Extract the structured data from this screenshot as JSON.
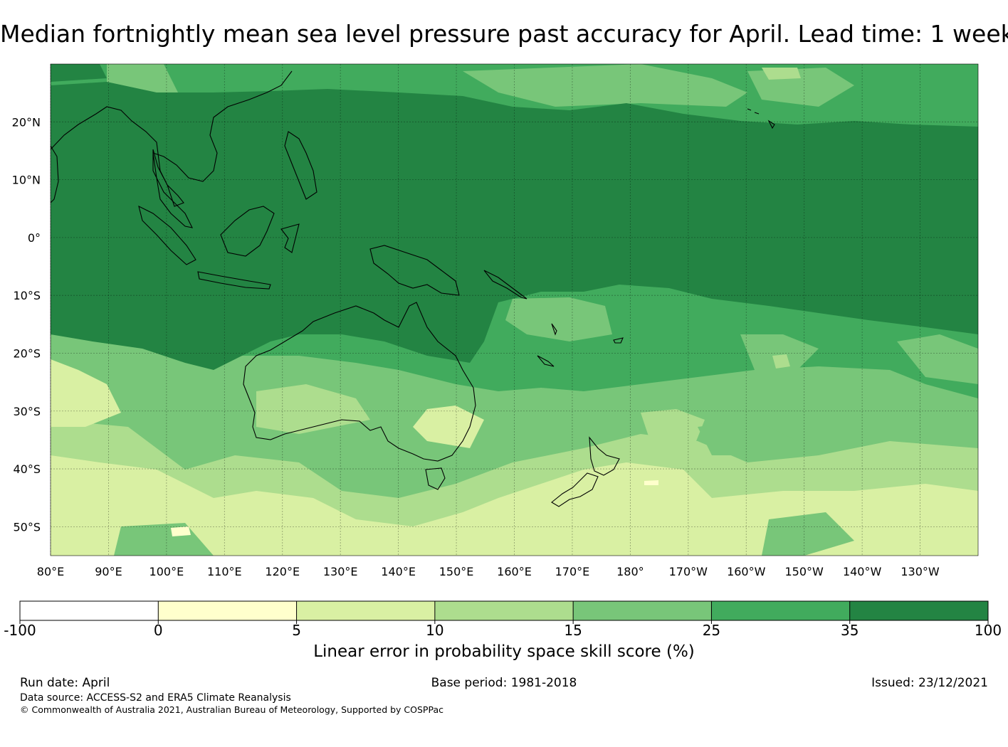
{
  "title": "Median fortnightly mean sea level pressure past accuracy for April. Lead time: 1 week",
  "lat_labels": [
    "20°N",
    "10°N",
    "0°",
    "10°S",
    "20°S",
    "30°S",
    "40°S",
    "50°S"
  ],
  "lat_values": [
    20,
    10,
    0,
    -10,
    -20,
    -30,
    -40,
    -50
  ],
  "lon_labels": [
    "80°E",
    "90°E",
    "100°E",
    "110°E",
    "120°E",
    "130°E",
    "140°E",
    "150°E",
    "160°E",
    "170°E",
    "180°",
    "170°W",
    "160°W",
    "150°W",
    "140°W",
    "130°W"
  ],
  "lon_values": [
    80,
    90,
    100,
    110,
    120,
    130,
    140,
    150,
    160,
    170,
    180,
    190,
    200,
    210,
    220,
    230
  ],
  "colorbar": {
    "ticks": [
      "-100",
      "0",
      "5",
      "10",
      "15",
      "25",
      "35",
      "100"
    ],
    "colors": [
      "#ffffff",
      "#ffffcc",
      "#d9f0a3",
      "#addd8e",
      "#78c679",
      "#41ab5d",
      "#238443"
    ],
    "label": "Linear error in probability space skill score (%)"
  },
  "footer": {
    "run_date": "Run date: April",
    "base_period": "Base period: 1981-2018",
    "issued": "Issued: 23/12/2021",
    "data_source": "Data source: ACCESS-S2 and ERA5 Climate Reanalysis",
    "copyright": "© Commonwealth of Australia 2021, Australian Bureau of Meteorology, Supported by COSPPac"
  }
}
